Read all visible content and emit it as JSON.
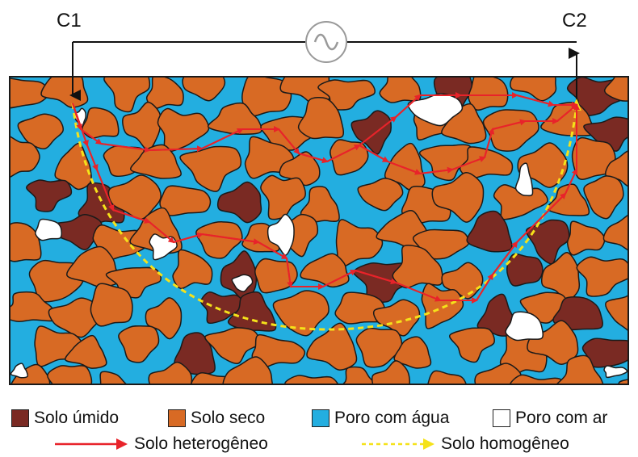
{
  "electrodes": {
    "left": "C1",
    "right": "C2"
  },
  "colors": {
    "wet_soil": "#7a2a23",
    "dry_soil": "#d86a24",
    "water_pore": "#23aee0",
    "air_pore": "#ffffff",
    "heterogeneous_path": "#e8232a",
    "homogeneous_path": "#f5e21a",
    "outline": "#1a1a1a"
  },
  "legend": {
    "items": [
      {
        "label": "Solo úmido",
        "color": "#7a2a23"
      },
      {
        "label": "Solo seco",
        "color": "#d86a24"
      },
      {
        "label": "Poro com água",
        "color": "#23aee0"
      },
      {
        "label": "Poro com ar",
        "color": "#ffffff"
      }
    ],
    "paths": [
      {
        "label": "Solo heterogêneo",
        "style": "solid-red-arrow"
      },
      {
        "label": "Solo homogêneo",
        "style": "dashed-yellow-arrow"
      }
    ]
  },
  "source_icon": "ac-sine-wave-icon"
}
